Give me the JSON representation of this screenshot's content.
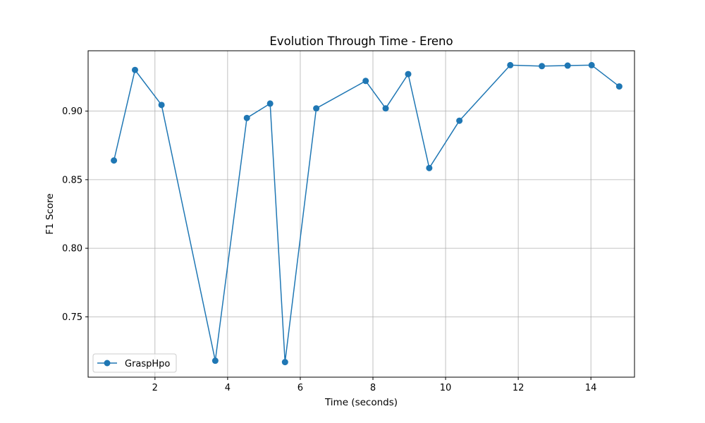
{
  "chart_data": {
    "type": "line",
    "title": "Evolution Through Time - Ereno",
    "xlabel": "Time (seconds)",
    "ylabel": "F1 Score",
    "xlim": [
      0.16,
      15.2
    ],
    "ylim": [
      0.706,
      0.944
    ],
    "xticks": [
      2,
      4,
      6,
      8,
      10,
      12,
      14
    ],
    "xtick_labels": [
      "2",
      "4",
      "6",
      "8",
      "10",
      "12",
      "14"
    ],
    "yticks": [
      0.75,
      0.8,
      0.85,
      0.9
    ],
    "ytick_labels": [
      "0.75",
      "0.80",
      "0.85",
      "0.90"
    ],
    "grid": true,
    "legend_position": "lower-left",
    "series": [
      {
        "name": "GraspHpo",
        "color": "#1f77b4",
        "marker": "circle",
        "x": [
          0.87,
          1.45,
          2.18,
          3.66,
          4.53,
          5.17,
          5.58,
          6.44,
          7.8,
          8.35,
          8.97,
          9.55,
          10.38,
          11.78,
          12.65,
          13.36,
          14.02,
          14.78
        ],
        "y": [
          0.864,
          0.93,
          0.9045,
          0.718,
          0.895,
          0.9055,
          0.717,
          0.902,
          0.922,
          0.902,
          0.927,
          0.8585,
          0.893,
          0.9335,
          0.9328,
          0.9332,
          0.9335,
          0.918
        ]
      }
    ]
  }
}
